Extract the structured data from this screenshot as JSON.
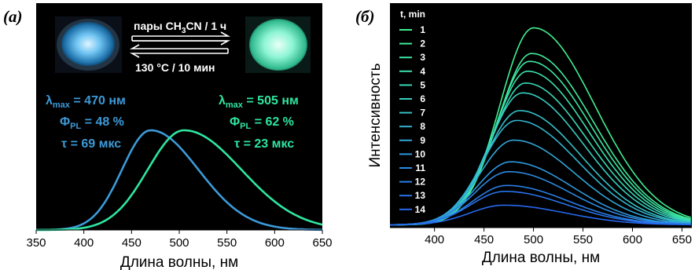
{
  "panel_a": {
    "tag": "(a)",
    "conversion": {
      "forward_prefix": "пары CH",
      "forward_sub": "3",
      "forward_suffix": "CN / 1 ч",
      "reverse": "130 °C / 10 мин"
    },
    "left_params": {
      "lambda_sym": "λ",
      "lambda_sub": "max",
      "lambda_val": " = 470 нм",
      "phi_sym": "Φ",
      "phi_sub": "PL",
      "phi_val": " = 48 %",
      "tau": "τ = 69 мкс"
    },
    "right_params": {
      "lambda_sym": "λ",
      "lambda_sub": "max",
      "lambda_val": " = 505 нм",
      "phi_sym": "Φ",
      "phi_sub": "PL",
      "phi_val": " = 62 %",
      "tau": "τ = 23 мкс"
    },
    "colors": {
      "blue": "#3c9ad8",
      "green": "#2ee6a0",
      "bg": "#000000"
    }
  },
  "panel_b": {
    "tag": "(б)",
    "legend_title": "t, min",
    "colors": {
      "bg": "#000000"
    }
  },
  "chart_data": [
    {
      "type": "line",
      "title": "",
      "xlabel": "Длина волны, нм",
      "ylabel": "",
      "xlim": [
        350,
        650
      ],
      "x_ticks": [
        350,
        400,
        450,
        500,
        550,
        600,
        650
      ],
      "series": [
        {
          "name": "",
          "color": "#3c9ad8",
          "peak_x": 470,
          "peak_y": 1.0,
          "sigma_left": 30,
          "sigma_right": 50,
          "x": [
            380,
            400,
            420,
            440,
            460,
            470,
            480,
            500,
            520,
            540,
            560,
            580,
            600,
            620,
            640,
            650
          ],
          "y": [
            0.03,
            0.18,
            0.46,
            0.78,
            0.98,
            1.0,
            0.98,
            0.85,
            0.66,
            0.46,
            0.3,
            0.18,
            0.1,
            0.05,
            0.02,
            0.02
          ]
        },
        {
          "name": "",
          "color": "#2ee6a0",
          "peak_x": 505,
          "peak_y": 1.0,
          "sigma_left": 38,
          "sigma_right": 60,
          "x": [
            390,
            410,
            430,
            450,
            470,
            490,
            505,
            520,
            540,
            560,
            580,
            600,
            620,
            640,
            650
          ],
          "y": [
            0.02,
            0.09,
            0.25,
            0.48,
            0.73,
            0.93,
            1.0,
            0.97,
            0.86,
            0.7,
            0.54,
            0.38,
            0.25,
            0.15,
            0.12
          ]
        }
      ]
    },
    {
      "type": "line",
      "title": "",
      "xlabel": "Длина волны, нм",
      "ylabel": "Интенсивность",
      "xlim": [
        355,
        660
      ],
      "x_ticks": [
        400,
        450,
        500,
        550,
        600,
        650
      ],
      "legend_title": "t, min",
      "legend_placement": "top-left",
      "series": [
        {
          "name": "1",
          "color": "#40f090",
          "peak_x": 500,
          "peak": 1.0
        },
        {
          "name": "2",
          "color": "#3eec98",
          "peak_x": 498,
          "peak": 0.87
        },
        {
          "name": "3",
          "color": "#3ce6a2",
          "peak_x": 496,
          "peak": 0.83
        },
        {
          "name": "4",
          "color": "#3ae0ac",
          "peak_x": 494,
          "peak": 0.78
        },
        {
          "name": "5",
          "color": "#38d8b6",
          "peak_x": 492,
          "peak": 0.72
        },
        {
          "name": "6",
          "color": "#36cec0",
          "peak_x": 489,
          "peak": 0.67
        },
        {
          "name": "7",
          "color": "#34c2c8",
          "peak_x": 486,
          "peak": 0.58
        },
        {
          "name": "8",
          "color": "#32b4d0",
          "peak_x": 483,
          "peak": 0.53
        },
        {
          "name": "9",
          "color": "#30a6d8",
          "peak_x": 480,
          "peak": 0.43
        },
        {
          "name": "10",
          "color": "#2e98de",
          "peak_x": 477,
          "peak": 0.32
        },
        {
          "name": "11",
          "color": "#2c8ae2",
          "peak_x": 475,
          "peak": 0.27
        },
        {
          "name": "12",
          "color": "#2a7ee6",
          "peak_x": 473,
          "peak": 0.2
        },
        {
          "name": "13",
          "color": "#2874ea",
          "peak_x": 471,
          "peak": 0.17
        },
        {
          "name": "14",
          "color": "#2668ee",
          "peak_x": 470,
          "peak": 0.1
        }
      ]
    }
  ]
}
